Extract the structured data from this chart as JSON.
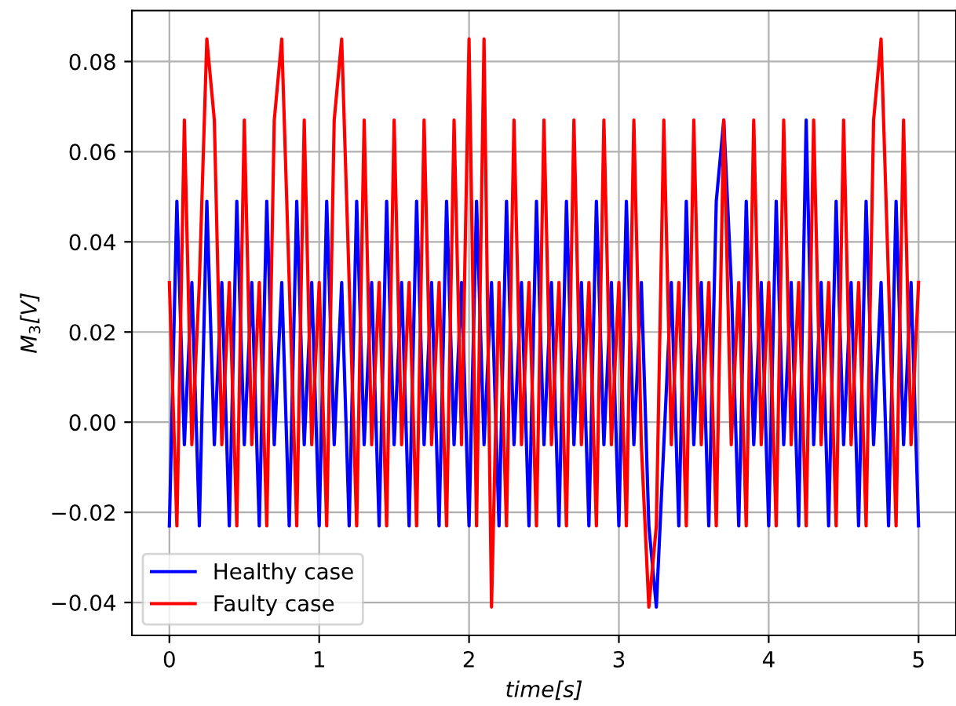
{
  "chart_data": {
    "type": "line",
    "xlabel": "time[s]",
    "ylabel": "M$_{3}$[V]",
    "xlim": [
      -0.25,
      5.25
    ],
    "ylim": [
      -0.0473,
      0.0913
    ],
    "xticks": [
      0,
      1,
      2,
      3,
      4,
      5
    ],
    "yticks": [
      {
        "value": -0.04,
        "label": "−0.04"
      },
      {
        "value": -0.02,
        "label": "−0.02"
      },
      {
        "value": 0,
        "label": "0.00"
      },
      {
        "value": 0.02,
        "label": "0.02"
      },
      {
        "value": 0.04,
        "label": "0.04"
      },
      {
        "value": 0.06,
        "label": "0.06"
      },
      {
        "value": 0.08,
        "label": "0.08"
      }
    ],
    "grid": true,
    "legend": "bottom left",
    "x": [
      0,
      0.05,
      0.1,
      0.15,
      0.2,
      0.25,
      0.3,
      0.35,
      0.4,
      0.45,
      0.5,
      0.55,
      0.6,
      0.65,
      0.7,
      0.75,
      0.8,
      0.85,
      0.9,
      0.95,
      1,
      1.05,
      1.1,
      1.15,
      1.2,
      1.25,
      1.3,
      1.35,
      1.4,
      1.45,
      1.5,
      1.55,
      1.6,
      1.65,
      1.7,
      1.75,
      1.8,
      1.85,
      1.9,
      1.95,
      2,
      2.05,
      2.1,
      2.15,
      2.2,
      2.25,
      2.3,
      2.35,
      2.4,
      2.45,
      2.5,
      2.55,
      2.6,
      2.65,
      2.7,
      2.75,
      2.8,
      2.85,
      2.9,
      2.95,
      3,
      3.05,
      3.1,
      3.15,
      3.2,
      3.25,
      3.3,
      3.35,
      3.4,
      3.45,
      3.5,
      3.55,
      3.6,
      3.65,
      3.7,
      3.75,
      3.8,
      3.85,
      3.9,
      3.95,
      4,
      4.05,
      4.1,
      4.15,
      4.2,
      4.25,
      4.3,
      4.35,
      4.4,
      4.45,
      4.5,
      4.55,
      4.6,
      4.65,
      4.7,
      4.75,
      4.8,
      4.85,
      4.9,
      4.95,
      5
    ],
    "series": [
      {
        "name": "Healthy case",
        "color": "#0000ff",
        "values": [
          -0.023,
          0.049,
          -0.005,
          0.031,
          -0.023,
          0.049,
          -0.005,
          0.031,
          -0.023,
          0.049,
          -0.005,
          0.031,
          -0.023,
          0.049,
          -0.005,
          0.031,
          -0.023,
          0.049,
          -0.005,
          0.031,
          -0.023,
          0.049,
          -0.005,
          0.031,
          -0.023,
          0.049,
          -0.005,
          0.031,
          -0.023,
          0.049,
          -0.005,
          0.031,
          -0.023,
          0.049,
          -0.005,
          0.031,
          -0.023,
          0.049,
          -0.005,
          0.031,
          -0.023,
          0.049,
          -0.005,
          0.031,
          -0.023,
          0.049,
          -0.005,
          0.031,
          -0.023,
          0.049,
          -0.005,
          0.031,
          -0.023,
          0.049,
          -0.005,
          0.031,
          -0.023,
          0.049,
          -0.005,
          0.031,
          -0.023,
          0.049,
          -0.005,
          0.031,
          -0.023,
          -0.041,
          -0.005,
          0.031,
          -0.023,
          0.049,
          -0.005,
          0.031,
          -0.023,
          0.049,
          0.067,
          0.031,
          -0.023,
          0.049,
          -0.005,
          0.031,
          -0.023,
          0.049,
          -0.005,
          0.031,
          -0.023,
          0.067,
          -0.005,
          0.031,
          -0.023,
          0.049,
          -0.005,
          0.031,
          -0.023,
          0.049,
          -0.005,
          0.031,
          -0.023,
          0.049,
          -0.005,
          0.031,
          -0.023
        ]
      },
      {
        "name": "Faulty case",
        "color": "#ff0000",
        "values": [
          0.031,
          -0.023,
          0.067,
          -0.005,
          0.031,
          0.085,
          0.067,
          -0.005,
          0.031,
          -0.023,
          0.067,
          -0.005,
          0.031,
          -0.023,
          0.067,
          0.085,
          0.031,
          -0.023,
          0.067,
          -0.005,
          0.031,
          -0.023,
          0.067,
          0.085,
          0.031,
          -0.023,
          0.067,
          -0.005,
          0.031,
          -0.023,
          0.067,
          -0.005,
          0.031,
          -0.023,
          0.067,
          -0.005,
          0.031,
          -0.023,
          0.067,
          -0.005,
          0.085,
          -0.023,
          0.085,
          -0.041,
          0.031,
          -0.023,
          0.067,
          -0.005,
          0.031,
          -0.023,
          0.067,
          -0.005,
          0.031,
          -0.023,
          0.067,
          -0.005,
          0.031,
          -0.023,
          0.067,
          -0.005,
          0.031,
          -0.023,
          0.067,
          -0.005,
          -0.041,
          -0.023,
          0.067,
          -0.005,
          0.031,
          -0.023,
          0.067,
          -0.005,
          0.031,
          -0.023,
          0.067,
          -0.005,
          0.031,
          -0.023,
          0.067,
          -0.005,
          0.031,
          -0.023,
          0.067,
          -0.005,
          0.031,
          -0.023,
          0.067,
          -0.005,
          0.031,
          -0.023,
          0.067,
          -0.005,
          0.031,
          -0.023,
          0.067,
          0.085,
          0.031,
          -0.023,
          0.067,
          -0.005,
          0.031
        ]
      }
    ]
  }
}
